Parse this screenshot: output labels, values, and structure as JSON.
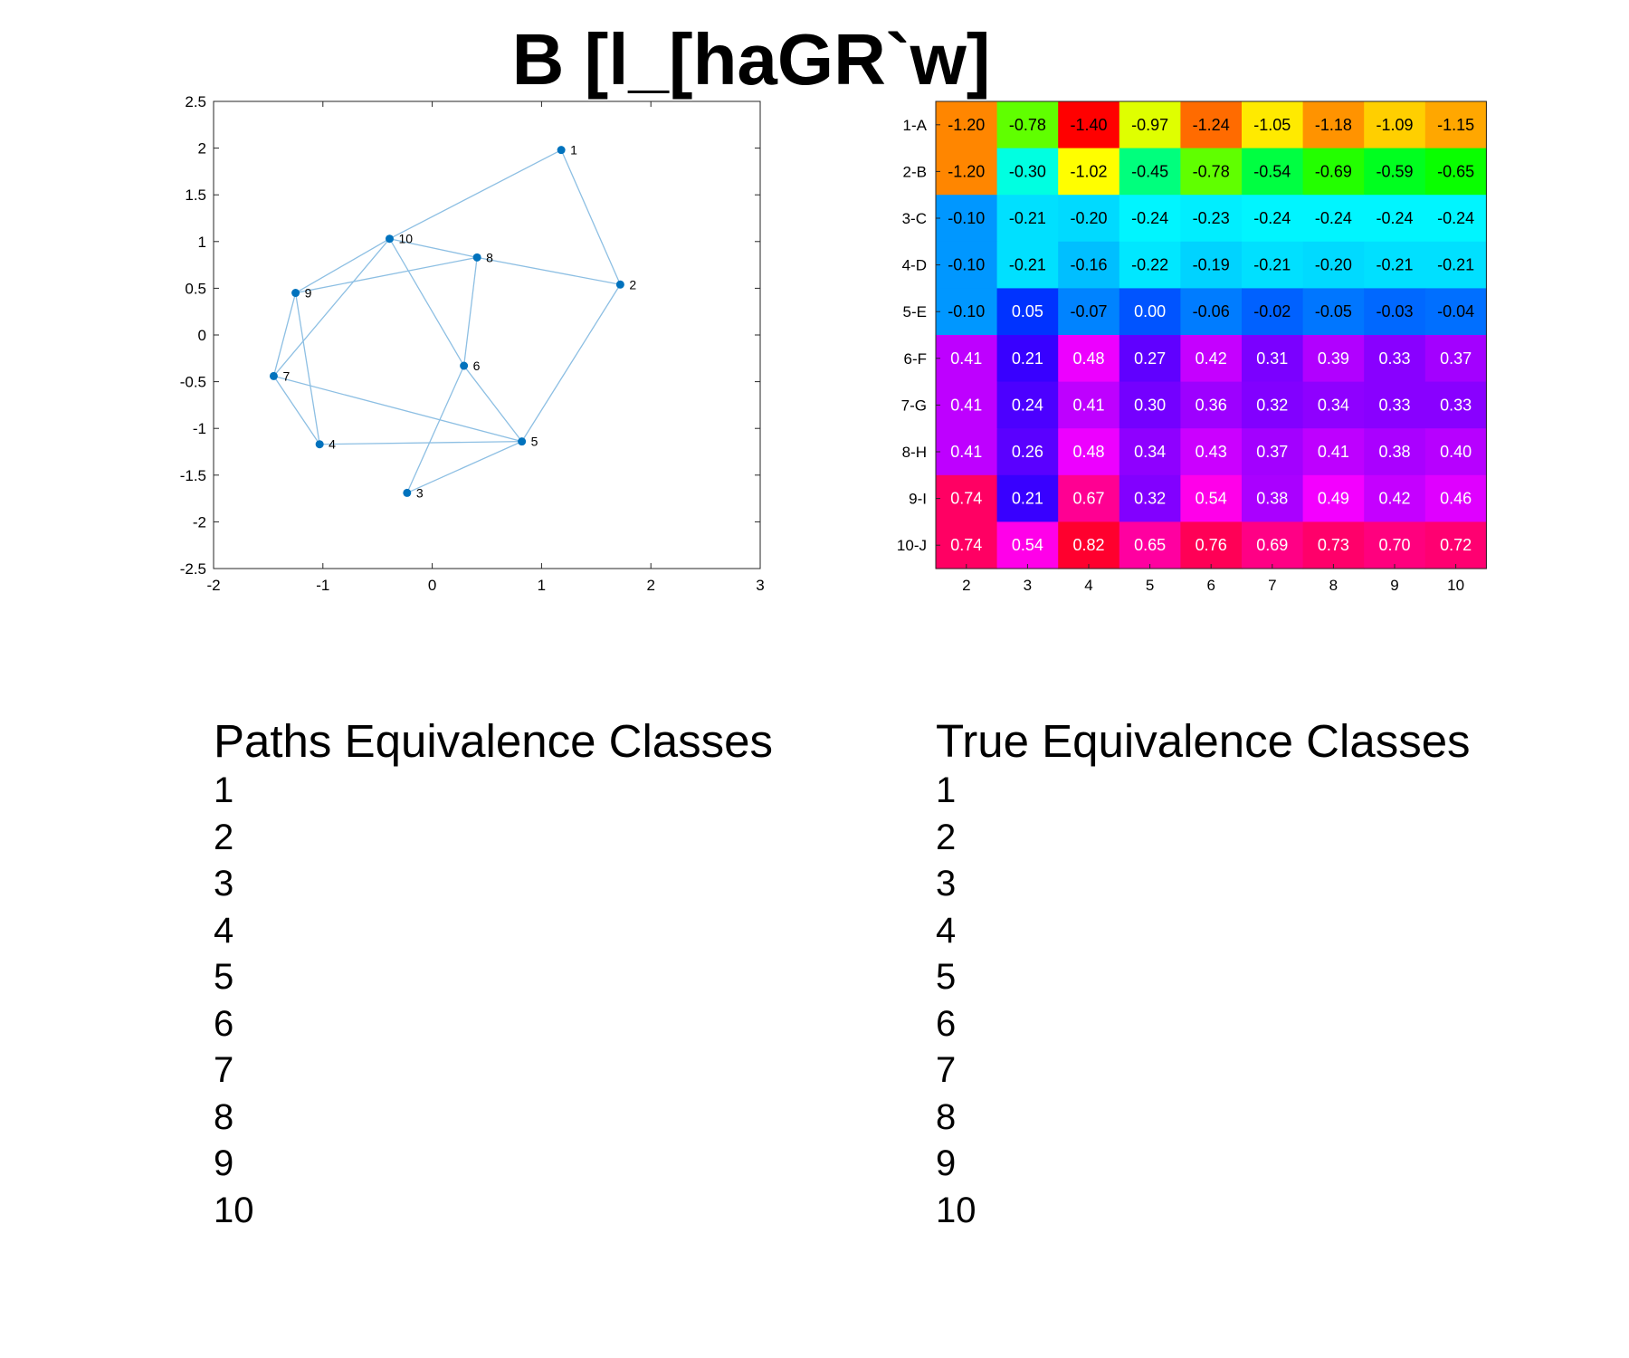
{
  "title": "B [l_[haGR`w]",
  "chart_data": [
    {
      "type": "scatter",
      "xlim": [
        -2,
        3
      ],
      "ylim": [
        -2.5,
        2.5
      ],
      "xticks": [
        -2,
        -1,
        0,
        1,
        2,
        3
      ],
      "yticks": [
        -2.5,
        -2,
        -1.5,
        -1,
        -0.5,
        0,
        0.5,
        1,
        1.5,
        2,
        2.5
      ],
      "grid": false,
      "point_color": "#0072BD",
      "edge_color": "#8DBFE3",
      "nodes": [
        {
          "id": "1",
          "x": 1.18,
          "y": 1.98
        },
        {
          "id": "2",
          "x": 1.72,
          "y": 0.54
        },
        {
          "id": "3",
          "x": -0.23,
          "y": -1.69
        },
        {
          "id": "4",
          "x": -1.03,
          "y": -1.17
        },
        {
          "id": "5",
          "x": 0.82,
          "y": -1.14
        },
        {
          "id": "6",
          "x": 0.29,
          "y": -0.33
        },
        {
          "id": "7",
          "x": -1.45,
          "y": -0.44
        },
        {
          "id": "8",
          "x": 0.41,
          "y": 0.83
        },
        {
          "id": "9",
          "x": -1.25,
          "y": 0.45
        },
        {
          "id": "10",
          "x": -0.39,
          "y": 1.03
        }
      ],
      "edges": [
        [
          "1",
          "10"
        ],
        [
          "1",
          "2"
        ],
        [
          "2",
          "8"
        ],
        [
          "2",
          "5"
        ],
        [
          "10",
          "8"
        ],
        [
          "10",
          "9"
        ],
        [
          "10",
          "7"
        ],
        [
          "10",
          "6"
        ],
        [
          "8",
          "9"
        ],
        [
          "8",
          "6"
        ],
        [
          "9",
          "7"
        ],
        [
          "9",
          "4"
        ],
        [
          "7",
          "4"
        ],
        [
          "7",
          "5"
        ],
        [
          "4",
          "5"
        ],
        [
          "6",
          "5"
        ],
        [
          "6",
          "3"
        ],
        [
          "5",
          "3"
        ]
      ]
    },
    {
      "type": "heatmap",
      "row_labels": [
        "1-A",
        "2-B",
        "3-C",
        "4-D",
        "5-E",
        "6-F",
        "7-G",
        "8-H",
        "9-I",
        "10-J"
      ],
      "col_labels": [
        "2",
        "3",
        "4",
        "5",
        "6",
        "7",
        "8",
        "9",
        "10"
      ],
      "values": [
        [
          -1.2,
          -0.78,
          -1.4,
          -0.97,
          -1.24,
          -1.05,
          -1.18,
          -1.09,
          -1.15
        ],
        [
          -1.2,
          -0.3,
          -1.02,
          -0.45,
          -0.78,
          -0.54,
          -0.69,
          -0.59,
          -0.65
        ],
        [
          -0.1,
          -0.21,
          -0.2,
          -0.24,
          -0.23,
          -0.24,
          -0.24,
          -0.24,
          -0.24
        ],
        [
          -0.1,
          -0.21,
          -0.16,
          -0.22,
          -0.19,
          -0.21,
          -0.2,
          -0.21,
          -0.21
        ],
        [
          -0.1,
          0.05,
          -0.07,
          0.0,
          -0.06,
          -0.02,
          -0.05,
          -0.03,
          -0.04
        ],
        [
          0.41,
          0.21,
          0.48,
          0.27,
          0.42,
          0.31,
          0.39,
          0.33,
          0.37
        ],
        [
          0.41,
          0.24,
          0.41,
          0.3,
          0.36,
          0.32,
          0.34,
          0.33,
          0.33
        ],
        [
          0.41,
          0.26,
          0.48,
          0.34,
          0.43,
          0.37,
          0.41,
          0.38,
          0.4
        ],
        [
          0.74,
          0.21,
          0.67,
          0.32,
          0.54,
          0.38,
          0.49,
          0.42,
          0.46
        ],
        [
          0.74,
          0.54,
          0.82,
          0.65,
          0.76,
          0.69,
          0.73,
          0.7,
          0.72
        ]
      ],
      "colormap": "hsv",
      "light_text_color": "#ffffff",
      "dark_text_color": "#000000"
    }
  ],
  "lists": {
    "left": {
      "heading": "Paths Equivalence Classes",
      "items": [
        "1",
        "2",
        "3",
        "4",
        "5",
        "6",
        "7",
        "8",
        "9",
        "10"
      ]
    },
    "right": {
      "heading": "True Equivalence Classes",
      "items": [
        "1",
        "2",
        "3",
        "4",
        "5",
        "6",
        "7",
        "8",
        "9",
        "10"
      ]
    }
  }
}
